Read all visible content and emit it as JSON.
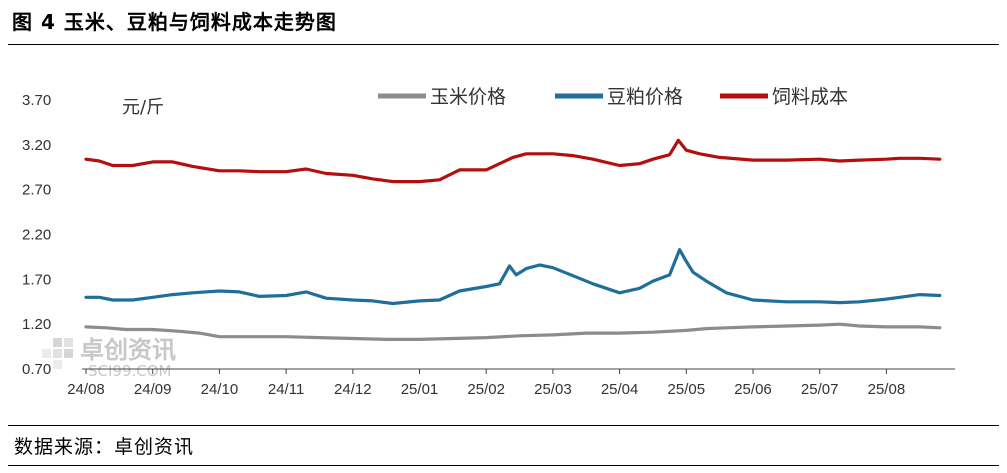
{
  "figure": {
    "title": "图 4  玉米、豆粕与饲料成本走势图",
    "source": "数据来源：卓创资讯",
    "watermark": {
      "main": "卓创资讯",
      "sub": "SCI99.COM"
    }
  },
  "chart_data": {
    "type": "line",
    "title": "",
    "xlabel": "",
    "ylabel": "元/斤",
    "ylim": [
      0.7,
      3.7
    ],
    "yticks": [
      "3.70",
      "3.20",
      "2.70",
      "2.20",
      "1.70",
      "1.20",
      "0.70"
    ],
    "categories": [
      "24/08",
      "24/09",
      "24/10",
      "24/11",
      "24/12",
      "25/01",
      "25/02",
      "25/03",
      "25/04",
      "25/05",
      "25/06",
      "25/07",
      "25/08"
    ],
    "legend_position": "top-right",
    "grid": false,
    "series": [
      {
        "name": "玉米价格",
        "color": "#8c8c8c",
        "x": [
          0.0,
          0.3,
          0.6,
          1.0,
          1.4,
          1.7,
          2.0,
          2.4,
          3.0,
          3.5,
          4.0,
          4.5,
          5.0,
          5.5,
          6.0,
          6.5,
          7.0,
          7.5,
          8.0,
          8.5,
          9.0,
          9.3,
          9.6,
          10.0,
          10.5,
          11.0,
          11.3,
          11.6,
          12.0,
          12.5,
          12.8
        ],
        "values": [
          1.17,
          1.16,
          1.14,
          1.14,
          1.12,
          1.1,
          1.06,
          1.06,
          1.06,
          1.05,
          1.04,
          1.03,
          1.03,
          1.04,
          1.05,
          1.07,
          1.08,
          1.1,
          1.1,
          1.11,
          1.13,
          1.15,
          1.16,
          1.17,
          1.18,
          1.19,
          1.2,
          1.18,
          1.17,
          1.17,
          1.16
        ]
      },
      {
        "name": "豆粕价格",
        "color": "#1f6f9a",
        "x": [
          0.0,
          0.2,
          0.4,
          0.7,
          1.0,
          1.3,
          1.6,
          2.0,
          2.3,
          2.6,
          3.0,
          3.3,
          3.6,
          4.0,
          4.3,
          4.6,
          5.0,
          5.3,
          5.6,
          6.0,
          6.2,
          6.35,
          6.45,
          6.6,
          6.8,
          7.0,
          7.3,
          7.6,
          8.0,
          8.3,
          8.5,
          8.75,
          8.9,
          9.0,
          9.1,
          9.3,
          9.6,
          10.0,
          10.5,
          11.0,
          11.3,
          11.6,
          12.0,
          12.2,
          12.5,
          12.8
        ],
        "values": [
          1.5,
          1.5,
          1.47,
          1.47,
          1.5,
          1.53,
          1.55,
          1.57,
          1.56,
          1.51,
          1.52,
          1.56,
          1.49,
          1.47,
          1.46,
          1.43,
          1.46,
          1.47,
          1.57,
          1.62,
          1.65,
          1.85,
          1.75,
          1.82,
          1.86,
          1.83,
          1.74,
          1.65,
          1.55,
          1.6,
          1.68,
          1.75,
          2.03,
          1.9,
          1.78,
          1.68,
          1.55,
          1.47,
          1.45,
          1.45,
          1.44,
          1.45,
          1.48,
          1.5,
          1.53,
          1.52
        ]
      },
      {
        "name": "饲料成本",
        "color": "#b40f0f",
        "x": [
          0.0,
          0.2,
          0.4,
          0.7,
          1.0,
          1.3,
          1.6,
          2.0,
          2.3,
          2.6,
          3.0,
          3.3,
          3.6,
          4.0,
          4.3,
          4.6,
          5.0,
          5.3,
          5.6,
          6.0,
          6.2,
          6.4,
          6.6,
          7.0,
          7.3,
          7.6,
          8.0,
          8.3,
          8.5,
          8.75,
          8.88,
          9.0,
          9.2,
          9.5,
          10.0,
          10.5,
          11.0,
          11.3,
          11.6,
          12.0,
          12.2,
          12.5,
          12.8
        ],
        "values": [
          3.04,
          3.02,
          2.97,
          2.97,
          3.01,
          3.01,
          2.96,
          2.91,
          2.91,
          2.9,
          2.9,
          2.93,
          2.88,
          2.86,
          2.82,
          2.79,
          2.79,
          2.81,
          2.92,
          2.92,
          2.99,
          3.06,
          3.1,
          3.1,
          3.08,
          3.04,
          2.97,
          2.99,
          3.04,
          3.09,
          3.25,
          3.14,
          3.1,
          3.06,
          3.03,
          3.03,
          3.04,
          3.02,
          3.03,
          3.04,
          3.05,
          3.05,
          3.04
        ]
      }
    ]
  }
}
